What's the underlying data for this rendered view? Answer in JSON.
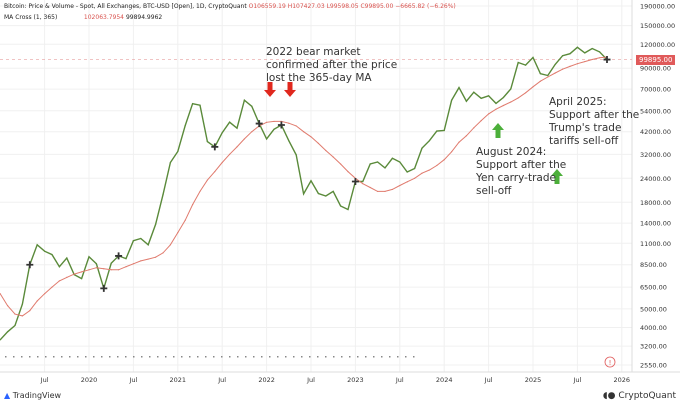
{
  "header": {
    "title": "Bitcoin: Price & Volume - Spot, All Exchanges, BTC-USD [Open], 1D, CryptoQuant",
    "open": "O106559.19",
    "high": "H107427.03",
    "low": "L99598.05",
    "close": "C99895.00",
    "change": "−6665.82 (−6.26%)",
    "ma_label": "MA Cross (1, 365)",
    "ma_value1": "102063.7954",
    "ma_value2": "99894.9962"
  },
  "current_price_label": "99895.00",
  "colors": {
    "price_line": "#5a8a3a",
    "ma_line": "#e07b6e",
    "current_price": "#e05a5a",
    "arrow_red": "#e0281e",
    "arrow_green": "#4caf3a"
  },
  "annotations": [
    {
      "id": "bear",
      "lines": [
        "2022 bear market",
        "confirmed after the price",
        "lost the 365-day MA"
      ]
    },
    {
      "id": "aug2024",
      "lines": [
        "August 2024:",
        "Support after the",
        "Yen carry-trade",
        "sell-off"
      ]
    },
    {
      "id": "apr2025",
      "lines": [
        "April 2025:",
        "Support after the",
        "Trump's trade",
        "tariffs sell-off"
      ]
    }
  ],
  "footer": {
    "left": "TradingView",
    "right": "CryptoQuant"
  },
  "chart_data": {
    "type": "line",
    "title": "",
    "y_scale": "log",
    "ylim": [
      2550,
      190000
    ],
    "y_ticks": [
      190000,
      150000,
      120000,
      90000,
      70000,
      54000,
      42000,
      32000,
      24000,
      18000,
      14000,
      11000,
      8500,
      6500,
      5000,
      4000,
      3200,
      2550
    ],
    "y_tick_labels": [
      "190000.00",
      "150000.00",
      "120000.00",
      "90000.00",
      "70000.00",
      "54000.00",
      "42000.00",
      "32000.00",
      "24000.00",
      "18000.00",
      "14000.00",
      "11000.00",
      "8500.00",
      "6500.00",
      "5000.00",
      "4000.00",
      "3200.00",
      "2550.00"
    ],
    "x_ticks": [
      "Jul",
      "2020",
      "Jul",
      "2021",
      "Jul",
      "2022",
      "Jul",
      "2023",
      "Jul",
      "2024",
      "Jul",
      "2025",
      "Jul",
      "2026"
    ],
    "x_tick_dates": [
      "2019-07",
      "2020-01",
      "2020-07",
      "2021-01",
      "2021-07",
      "2022-01",
      "2022-07",
      "2023-01",
      "2023-07",
      "2024-01",
      "2024-07",
      "2025-01",
      "2025-07",
      "2026-01"
    ],
    "grid": true,
    "start": "2019-01",
    "series": [
      {
        "key": "price",
        "values": [
          3450,
          3800,
          4100,
          5300,
          8500,
          10800,
          10000,
          9600,
          8300,
          9200,
          7550,
          7200,
          9350,
          8600,
          6400,
          8650,
          9450,
          9150,
          11350,
          11650,
          10800,
          13800,
          19700,
          29000,
          33100,
          45200,
          58800,
          57700,
          37300,
          35000,
          41500,
          47100,
          43800,
          61300,
          57000,
          46300,
          38500,
          43200,
          45500,
          37700,
          31800,
          19900,
          23300,
          20000,
          19400,
          20500,
          17200,
          16500,
          23100,
          23100,
          28500,
          29200,
          27200,
          30500,
          29200,
          25900,
          27000,
          34500,
          37700,
          42300,
          42600,
          61200,
          71300,
          60600,
          67500,
          62700,
          64600,
          59000,
          63300,
          70200,
          96400,
          93400,
          102400,
          84300,
          82500,
          94200,
          104600,
          107100,
          115700,
          108200,
          114000,
          109500,
          99895
        ]
      },
      {
        "key": "ma365",
        "values": [
          6000,
          5200,
          4700,
          4600,
          4900,
          5500,
          6000,
          6500,
          7000,
          7300,
          7600,
          7800,
          8000,
          8200,
          8100,
          8000,
          8000,
          8300,
          8600,
          8900,
          9100,
          9300,
          9800,
          10800,
          12500,
          14500,
          17500,
          20500,
          23500,
          26000,
          29000,
          32000,
          35000,
          38500,
          42000,
          45000,
          47000,
          47500,
          47500,
          46500,
          45000,
          42000,
          39500,
          36500,
          33500,
          31000,
          28500,
          26000,
          24000,
          22500,
          21500,
          20500,
          20500,
          21000,
          22000,
          23000,
          24000,
          25500,
          26500,
          28000,
          30000,
          33000,
          37000,
          40000,
          44000,
          48000,
          52000,
          55000,
          57500,
          60000,
          63000,
          67000,
          72000,
          77000,
          81000,
          85000,
          89000,
          92000,
          95000,
          97500,
          100000,
          102000,
          103000
        ]
      }
    ],
    "cross_markers": [
      "2019-05",
      "2020-03",
      "2020-05",
      "2021-06",
      "2021-12",
      "2022-03",
      "2023-01",
      "2025-11"
    ]
  }
}
